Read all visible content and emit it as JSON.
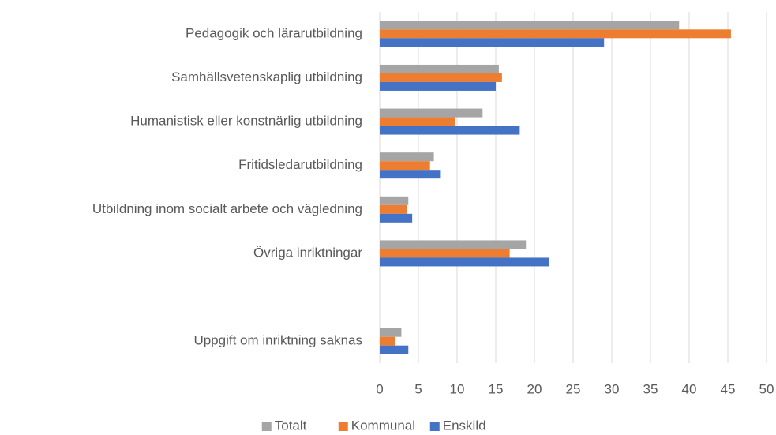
{
  "chart_data": {
    "type": "hbar",
    "categories": [
      "Pedagogik och lärarutbildning",
      "Samhällsvetenskaplig utbildning",
      "Humanistisk eller konstnärlig utbildning",
      "Fritidsledarutbildning",
      "Utbildning inom socialt arbete och vägledning",
      "Övriga inriktningar",
      null,
      "Uppgift om inriktning saknas"
    ],
    "series": [
      {
        "name": "Totalt",
        "color": "#a5a5a5",
        "values": [
          38.7,
          15.4,
          13.3,
          7.0,
          3.7,
          18.9,
          null,
          2.8
        ]
      },
      {
        "name": "Kommunal",
        "color": "#ed7d31",
        "values": [
          45.4,
          15.8,
          9.8,
          6.5,
          3.5,
          16.8,
          null,
          2.0
        ]
      },
      {
        "name": "Enskild",
        "color": "#4472c4",
        "values": [
          29.0,
          15.0,
          18.1,
          7.9,
          4.2,
          21.9,
          null,
          3.7
        ]
      }
    ],
    "xlim": [
      0,
      50
    ],
    "xticks": [
      0,
      5,
      10,
      15,
      20,
      25,
      30,
      35,
      40,
      45,
      50
    ],
    "grid": true,
    "legend": "bottom"
  }
}
